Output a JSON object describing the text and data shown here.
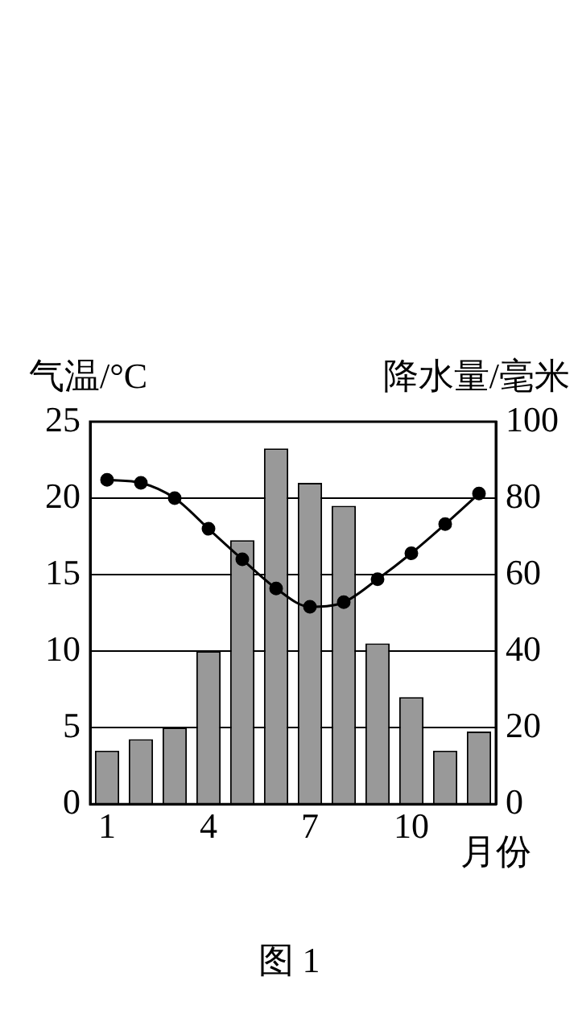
{
  "chart_data": {
    "type": "bar",
    "ylabel": "气温/°C",
    "y2label": "降水量/毫米",
    "xlabel": "月份",
    "categories": [
      "1",
      null,
      null,
      "4",
      null,
      null,
      "7",
      null,
      null,
      "10",
      null,
      null
    ],
    "series": [
      {
        "axis": "y2",
        "color": "#999999",
        "values": [
          14,
          17,
          20,
          40,
          69,
          93,
          84,
          78,
          42,
          28,
          14,
          19
        ]
      },
      {
        "type": "line",
        "axis": "y",
        "color": "#000000",
        "values": [
          21.2,
          21.0,
          20.0,
          18.0,
          16.0,
          14.1,
          12.9,
          13.2,
          14.7,
          16.4,
          18.3,
          20.3
        ]
      }
    ],
    "ylim": [
      0,
      25
    ],
    "yticks": [
      0,
      5,
      10,
      15,
      20,
      25
    ],
    "y2lim": [
      0,
      100
    ],
    "y2ticks": [
      0,
      20,
      40,
      60,
      80,
      100
    ],
    "grid": "y",
    "legend": false,
    "marker": "circle",
    "line_style": "solid",
    "annotations": [
      "图 1"
    ]
  }
}
